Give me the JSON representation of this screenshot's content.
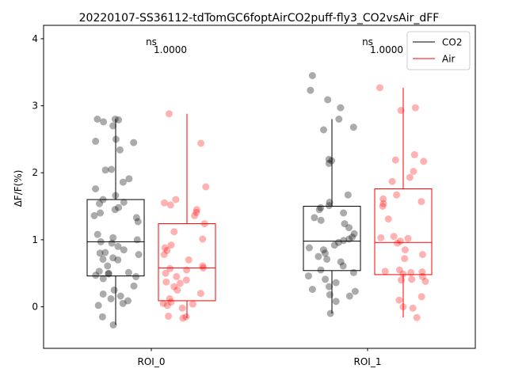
{
  "chart_data": {
    "type": "box",
    "title": "20220107-SS36112-tdTomGC6foptAirCO2puff-fly3_CO2vsAir_dFF",
    "xlabel": "",
    "ylabel": "ΔF/F(%)",
    "ylim": [
      -0.62,
      4.2
    ],
    "yticks": [
      0,
      1,
      2,
      3,
      4
    ],
    "grid": false,
    "legend_position": "top-right",
    "categories": [
      "ROI_0",
      "ROI_1"
    ],
    "series": [
      {
        "name": "CO2",
        "color": "#000000",
        "box": [
          {
            "category": "ROI_0",
            "whisker_low": -0.27,
            "q1": 0.46,
            "median": 0.97,
            "q3": 1.6,
            "whisker_high": 2.8
          },
          {
            "category": "ROI_1",
            "whisker_low": -0.1,
            "q1": 0.54,
            "median": 0.98,
            "q3": 1.5,
            "whisker_high": 2.8
          }
        ],
        "points": [
          {
            "category": "ROI_0",
            "values": [
              2.8,
              2.79,
              2.8,
              2.76,
              2.7,
              2.5,
              2.47,
              2.45,
              2.34,
              2.05,
              2.04,
              1.91,
              1.86,
              1.76,
              1.66,
              1.6,
              1.56,
              1.54,
              1.48,
              1.45,
              1.4,
              1.36,
              1.33,
              1.27,
              1.08,
              1.03,
              1.0,
              0.97,
              0.95,
              0.9,
              0.85,
              0.81,
              0.8,
              0.78,
              0.73,
              0.71,
              0.7,
              0.61,
              0.53,
              0.51,
              0.5,
              0.49,
              0.47,
              0.45,
              0.42,
              0.31,
              0.25,
              0.19,
              0.16,
              0.12,
              0.09,
              0.05,
              0.02,
              -0.15,
              -0.27
            ]
          },
          {
            "category": "ROI_1",
            "values": [
              3.45,
              3.23,
              3.09,
              2.97,
              2.8,
              2.68,
              2.64,
              2.2,
              2.18,
              2.14,
              1.67,
              1.56,
              1.51,
              1.48,
              1.45,
              1.4,
              1.33,
              1.29,
              1.24,
              1.18,
              1.09,
              1.04,
              1.01,
              0.99,
              0.96,
              0.92,
              0.88,
              0.85,
              0.8,
              0.75,
              0.71,
              0.67,
              0.61,
              0.55,
              0.51,
              0.46,
              0.41,
              0.36,
              0.3,
              0.26,
              0.23,
              0.18,
              0.16,
              0.08,
              -0.1
            ]
          }
        ]
      },
      {
        "name": "Air",
        "color": "#ff0000",
        "box": [
          {
            "category": "ROI_0",
            "whisker_low": -0.17,
            "q1": 0.09,
            "median": 0.58,
            "q3": 1.24,
            "whisker_high": 2.88
          },
          {
            "category": "ROI_1",
            "whisker_low": -0.16,
            "q1": 0.48,
            "median": 0.96,
            "q3": 1.76,
            "whisker_high": 3.27
          }
        ],
        "points": [
          {
            "category": "ROI_0",
            "values": [
              2.88,
              2.44,
              1.79,
              1.6,
              1.55,
              1.52,
              1.45,
              1.41,
              1.36,
              1.24,
              1.12,
              1.01,
              0.92,
              0.88,
              0.84,
              0.78,
              0.7,
              0.61,
              0.58,
              0.57,
              0.55,
              0.5,
              0.45,
              0.4,
              0.37,
              0.35,
              0.3,
              0.25,
              0.2,
              0.12,
              0.07,
              0.05,
              0.04,
              0.02,
              -0.02,
              -0.14,
              -0.15,
              -0.17
            ]
          },
          {
            "category": "ROI_1",
            "values": [
              3.27,
              2.97,
              2.93,
              2.27,
              2.19,
              2.17,
              2.02,
              1.93,
              1.87,
              1.67,
              1.61,
              1.57,
              1.54,
              1.5,
              1.31,
              1.05,
              1.03,
              1.02,
              0.98,
              0.95,
              0.85,
              0.78,
              0.72,
              0.55,
              0.53,
              0.52,
              0.51,
              0.49,
              0.45,
              0.41,
              0.4,
              0.38,
              0.15,
              0.1,
              0.0,
              -0.02,
              -0.16
            ]
          }
        ]
      }
    ],
    "annotations": [
      {
        "category": "ROI_0",
        "label": "ns",
        "value": "1.0000"
      },
      {
        "category": "ROI_1",
        "label": "ns",
        "value": "1.0000"
      }
    ]
  }
}
